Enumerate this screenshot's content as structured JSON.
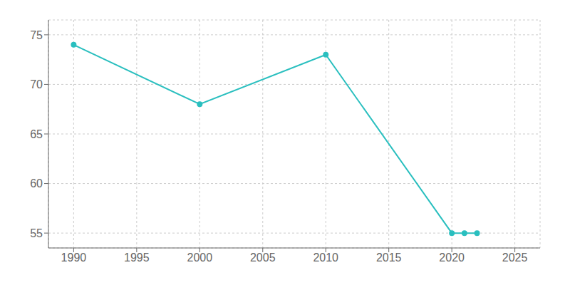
{
  "chart_data": {
    "type": "line",
    "x": [
      1990,
      2000,
      2010,
      2020,
      2021,
      2022
    ],
    "values": [
      74,
      68,
      73,
      55,
      55,
      55
    ],
    "color": "#2abfbf",
    "marker": "circle",
    "xlim": [
      1988,
      2027
    ],
    "ylim": [
      53.5,
      76.5
    ],
    "xticks": [
      1990,
      1995,
      2000,
      2005,
      2010,
      2015,
      2020,
      2025
    ],
    "yticks": [
      55,
      60,
      65,
      70,
      75
    ],
    "grid": true
  }
}
